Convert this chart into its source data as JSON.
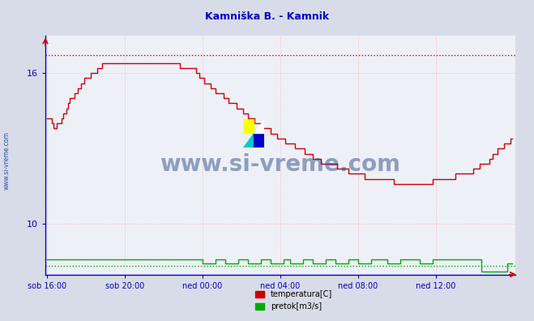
{
  "title": "Kamniška B. - Kamnik",
  "title_color": "#0000cc",
  "bg_color": "#d8dce8",
  "plot_bg_color": "#eef0f8",
  "watermark_text": "www.si-vreme.com",
  "watermark_color": "#1a3a7a",
  "sidebar_text": "www.si-vreme.com",
  "sidebar_color": "#2255aa",
  "ylim": [
    8.0,
    17.5
  ],
  "yticks": [
    10,
    16
  ],
  "xtick_labels": [
    "sob 16:00",
    "sob 20:00",
    "ned 00:00",
    "ned 04:00",
    "ned 08:00",
    "ned 12:00"
  ],
  "grid_color": "#ffaaaa",
  "axis_color": "#0000cc",
  "temp_color": "#cc0000",
  "flow_color": "#00aa00",
  "legend_temp": "temperatura[C]",
  "legend_flow": "pretok[m3/s]",
  "temp_max": 16.7,
  "flow_max_display": 8.35
}
